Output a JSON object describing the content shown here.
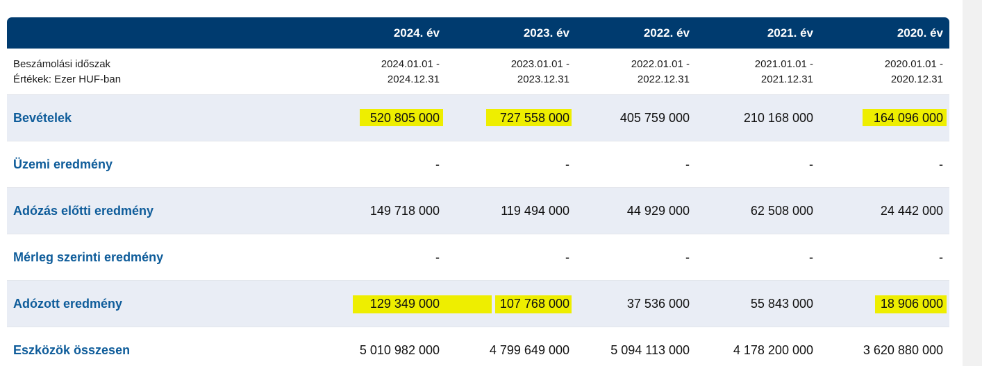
{
  "years": [
    "2024. év",
    "2023. év",
    "2022. év",
    "2021. év",
    "2020. év"
  ],
  "period_label": {
    "line1": "Beszámolási időszak",
    "line2": "Értékek: Ezer HUF-ban"
  },
  "periods": [
    {
      "from": "2024.01.01 -",
      "to": "2024.12.31"
    },
    {
      "from": "2023.01.01 -",
      "to": "2023.12.31"
    },
    {
      "from": "2022.01.01 -",
      "to": "2022.12.31"
    },
    {
      "from": "2021.01.01 -",
      "to": "2021.12.31"
    },
    {
      "from": "2020.01.01 -",
      "to": "2020.12.31"
    }
  ],
  "rows": [
    {
      "label": "Bevételek",
      "values": [
        "520 805 000",
        "727 558 000",
        "405 759 000",
        "210 168 000",
        "164 096 000"
      ]
    },
    {
      "label": "Üzemi eredmény",
      "values": [
        "-",
        "-",
        "-",
        "-",
        "-"
      ]
    },
    {
      "label": "Adózás előtti eredmény",
      "values": [
        "149 718 000",
        "119 494 000",
        "44 929 000",
        "62 508 000",
        "24 442 000"
      ]
    },
    {
      "label": "Mérleg szerinti eredmény",
      "values": [
        "-",
        "-",
        "-",
        "-",
        "-"
      ]
    },
    {
      "label": "Adózott eredmény",
      "values": [
        "129 349 000",
        "107 768 000",
        "37 536 000",
        "55 843 000",
        "18 906 000"
      ]
    },
    {
      "label": "Eszközök összesen",
      "values": [
        "5 010 982 000",
        "4 799 649 000",
        "5 094 113 000",
        "4 178 200 000",
        "3 620 880 000"
      ]
    }
  ],
  "colors": {
    "header_bg": "#003b6f",
    "label_blue": "#0e5c9a",
    "highlight": "#eeee00",
    "alt_row": "#e9edf5"
  }
}
